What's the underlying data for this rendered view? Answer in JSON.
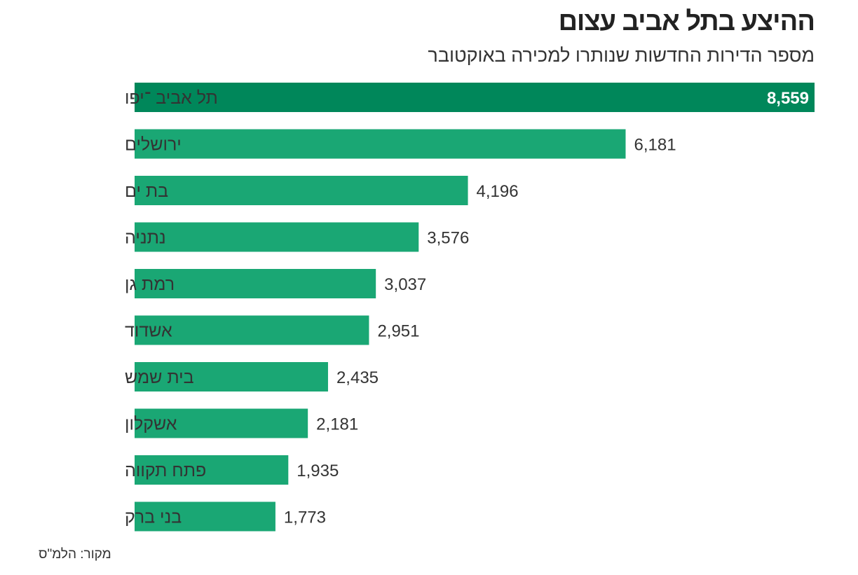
{
  "chart_data": {
    "type": "bar",
    "orientation": "horizontal",
    "title": "ההיצע בתל אביב עצום",
    "subtitle": "מספר הדירות החדשות שנותרו למכירה באוקטובר",
    "categories": [
      "תל אביב ־יפו",
      "ירושלים",
      "בת ים",
      "נתניה",
      "רמת גן",
      "אשדוד",
      "בית שמש",
      "אשקלון",
      "פתח תקווה",
      "בני ברק"
    ],
    "values": [
      8559,
      6181,
      4196,
      3576,
      3037,
      2951,
      2435,
      2181,
      1935,
      1773
    ],
    "value_labels": [
      "8,559",
      "6,181",
      "4,196",
      "3,576",
      "3,037",
      "2,951",
      "2,435",
      "2,181",
      "1,935",
      "1,773"
    ],
    "xlim": [
      0,
      8559
    ],
    "grid": false,
    "colors": {
      "highlight": "#00875a",
      "bar": "#1aa774",
      "highlight_label": "#ffffff",
      "label": "#333333"
    },
    "source": "מקור: הלמ\"ס"
  }
}
